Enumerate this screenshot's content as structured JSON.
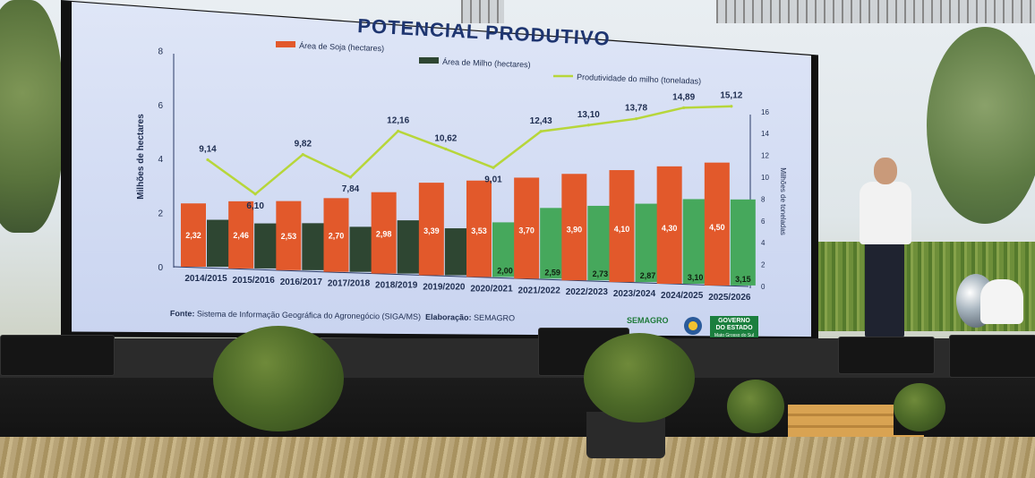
{
  "title": "POTENCIAL PRODUTIVO",
  "source": {
    "label": "Fonte:",
    "text": "Sistema de Informação Geográfica do Agronegócio (SIGA/MS)",
    "credit_label": "Elaboração:",
    "credit": "SEMAGRO"
  },
  "logos": {
    "semagro": "SEMAGRO",
    "governo_line1": "GOVERNO",
    "governo_line2": "DO ESTADO",
    "governo_line3": "Mato Grosso do Sul"
  },
  "colors": {
    "soja": "#e2592b",
    "milho": "#2e4632",
    "milho_light": "#46a85c",
    "produtividade": "#b7d63a",
    "axis_text": "#1e2d50"
  },
  "chart_data": {
    "type": "bar",
    "title": "POTENCIAL PRODUTIVO",
    "categories": [
      "2014/2015",
      "2015/2016",
      "2016/2017",
      "2017/2018",
      "2018/2019",
      "2019/2020",
      "2020/2021",
      "2021/2022",
      "2022/2023",
      "2023/2024",
      "2024/2025",
      "2025/2026"
    ],
    "ylabel": "Milhões de hectares",
    "y2label": "Milhões de toneladas",
    "ylim": [
      0,
      8
    ],
    "yticks": [
      0,
      2,
      4,
      6,
      8
    ],
    "y2lim": [
      0,
      16
    ],
    "y2ticks": [
      0,
      2,
      4,
      6,
      8,
      10,
      12,
      14,
      16
    ],
    "grid": false,
    "legend": "top",
    "series": [
      {
        "name": "Área de Soja (hectares)",
        "type": "bar",
        "axis": "left",
        "values": [
          2.32,
          2.46,
          2.53,
          2.7,
          2.98,
          3.39,
          3.53,
          3.7,
          3.9,
          4.1,
          4.3,
          4.5
        ],
        "labels": [
          "2,32",
          "2,46",
          "2,53",
          "2,70",
          "2,98",
          "3,39",
          "3,53",
          "3,70",
          "3,90",
          "4,10",
          "4,30",
          "4,50"
        ]
      },
      {
        "name": "Área de Milho (hectares)",
        "type": "bar",
        "axis": "left",
        "values": [
          1.72,
          1.65,
          1.72,
          1.65,
          1.95,
          1.72,
          2.0,
          2.59,
          2.73,
          2.87,
          3.1,
          3.15
        ],
        "labels": [
          "",
          "",
          "",
          "",
          "",
          "",
          "2,00",
          "2,59",
          "2,73",
          "2,87",
          "3,10",
          "3,15"
        ]
      },
      {
        "name": "Produtividade do milho (toneladas)",
        "type": "line",
        "axis": "right",
        "values": [
          9.14,
          6.1,
          9.82,
          7.84,
          12.16,
          10.62,
          9.01,
          12.43,
          13.1,
          13.78,
          14.89,
          15.12
        ],
        "labels": [
          "9,14",
          "6,10",
          "9,82",
          "7,84",
          "12,16",
          "10,62",
          "9,01",
          "12,43",
          "13,10",
          "13,78",
          "14,89",
          "15,12"
        ]
      }
    ]
  }
}
